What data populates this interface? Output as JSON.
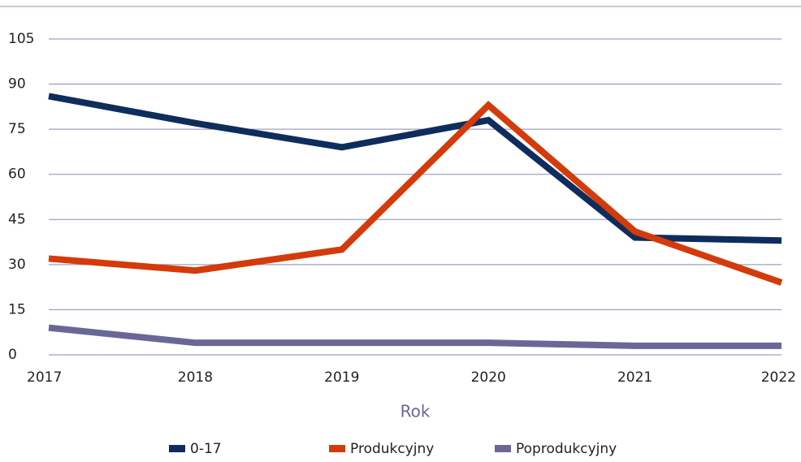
{
  "chart_data": {
    "type": "line",
    "categories": [
      "2017",
      "2018",
      "2019",
      "2020",
      "2021",
      "2022"
    ],
    "series": [
      {
        "name": "0-17",
        "color": "#0e2d5c",
        "values": [
          86,
          77,
          69,
          78,
          39,
          38
        ]
      },
      {
        "name": "Produkcyjny",
        "color": "#d43a0a",
        "values": [
          32,
          28,
          35,
          83,
          41,
          24
        ]
      },
      {
        "name": "Poprodukcyjny",
        "color": "#6a6798",
        "values": [
          9,
          4,
          4,
          4,
          3,
          3
        ]
      }
    ],
    "x_label": "Rok",
    "ylim": [
      0,
      105
    ],
    "yticks": [
      0,
      15,
      30,
      45,
      60,
      75,
      90,
      105
    ],
    "grid": true,
    "legend": "bottom"
  }
}
